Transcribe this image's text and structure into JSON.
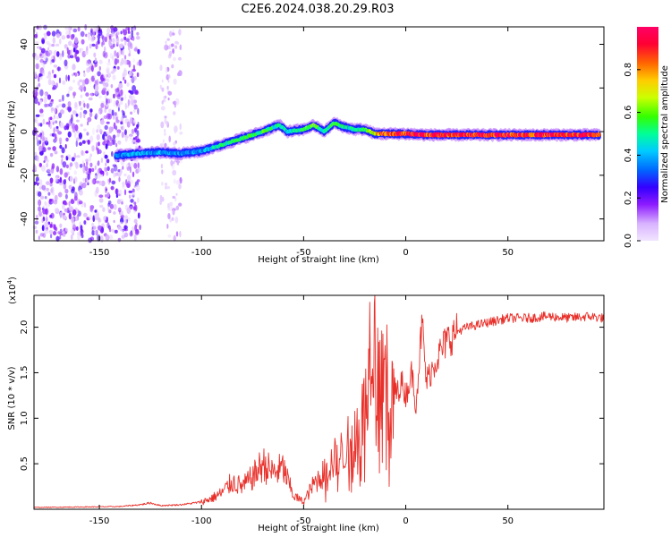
{
  "figure_title": "C2E6.2024.038.20.29.R03",
  "chart_data": [
    {
      "type": "heatmap",
      "xlabel": "Height of straight line (km)",
      "ylabel": "Frequency (Hz)",
      "xlim": [
        -182,
        97
      ],
      "ylim": [
        -50,
        48
      ],
      "x_ticks": [
        -150,
        -100,
        -50,
        0,
        50
      ],
      "y_ticks": [
        -40,
        -20,
        0,
        20,
        40
      ],
      "colorbar": {
        "label": "Normalized spectral amplitude",
        "range": [
          0,
          1
        ],
        "ticks": [
          0.0,
          0.2,
          0.4,
          0.6,
          0.8
        ],
        "colors": [
          "#f2e6ff",
          "#d9b3ff",
          "#8c1aff",
          "#3300ff",
          "#0066ff",
          "#00ccff",
          "#00ff99",
          "#33ff00",
          "#ccff00",
          "#ffcc00",
          "#ff6600",
          "#ff0033",
          "#ff0066"
        ]
      },
      "ridge": {
        "x": [
          -142,
          -130,
          -120,
          -110,
          -100,
          -90,
          -80,
          -70,
          -62,
          -58,
          -50,
          -45,
          -40,
          -35,
          -30,
          -25,
          -20,
          -15,
          -10,
          0,
          10,
          20,
          40,
          60,
          80,
          95
        ],
        "y": [
          -11,
          -10,
          -9.5,
          -10,
          -9,
          -6,
          -3,
          0,
          3,
          0,
          1,
          3,
          0,
          4,
          2,
          1,
          1,
          -1,
          -1,
          -1,
          -1.5,
          -1.5,
          -1.5,
          -1.5,
          -1.5,
          -1.5
        ],
        "amplitude": [
          0.35,
          0.4,
          0.4,
          0.35,
          0.4,
          0.5,
          0.55,
          0.55,
          0.5,
          0.45,
          0.55,
          0.6,
          0.5,
          0.55,
          0.5,
          0.45,
          0.55,
          0.7,
          0.9,
          0.95,
          0.95,
          0.95,
          0.95,
          0.95,
          0.95,
          0.95
        ]
      },
      "noise_regions": [
        {
          "x_range": [
            -182,
            -130
          ],
          "amplitude": 0.15
        },
        {
          "x_range": [
            -120,
            -110
          ],
          "amplitude": 0.08
        }
      ]
    },
    {
      "type": "line",
      "xlabel": "Height of straight line (km)",
      "ylabel": "SNR (10 * v/v)",
      "y_multiplier": "(x10",
      "y_multiplier_exp": "4",
      "y_multiplier_close": ")",
      "xlim": [
        -182,
        97
      ],
      "ylim": [
        0,
        23500
      ],
      "x_ticks": [
        -150,
        -100,
        -50,
        0,
        50
      ],
      "y_ticks": [
        5000,
        10000,
        15000,
        20000
      ],
      "y_tick_labels": [
        "0.5",
        "1.0",
        "1.5",
        "2.0"
      ],
      "line_color": "#e8302a",
      "series": [
        {
          "x": [
            -182,
            -160,
            -140,
            -130,
            -125,
            -120,
            -110,
            -100,
            -95,
            -90,
            -85,
            -80,
            -75,
            -70,
            -65,
            -60,
            -55,
            -50,
            -45,
            -40,
            -35,
            -30,
            -25,
            -20,
            -17,
            -12,
            -8,
            -5,
            -2,
            0,
            3,
            5,
            8,
            10,
            15,
            20,
            25,
            30,
            40,
            50,
            60,
            70,
            80,
            90,
            97
          ],
          "y": [
            200,
            250,
            300,
            500,
            700,
            400,
            500,
            800,
            1200,
            1800,
            3000,
            2500,
            3500,
            5000,
            4000,
            4500,
            1500,
            800,
            2800,
            4000,
            5500,
            6500,
            8500,
            11000,
            20000,
            16000,
            13500,
            12500,
            14000,
            12500,
            15000,
            11500,
            20500,
            14000,
            16500,
            18500,
            19500,
            20000,
            20500,
            21000,
            21000,
            21200,
            21000,
            21200,
            21000
          ]
        }
      ]
    }
  ]
}
